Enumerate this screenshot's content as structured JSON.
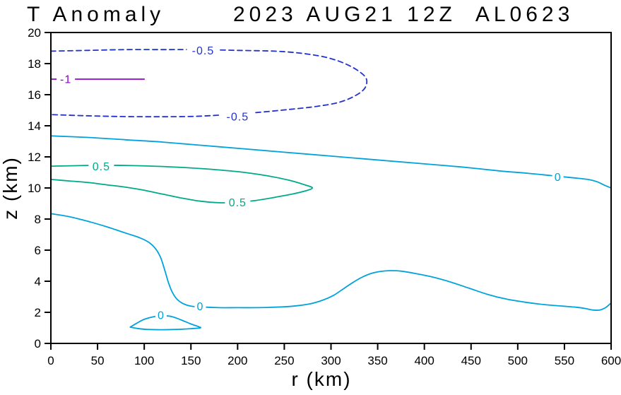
{
  "figure": {
    "title_left": "T Anomaly",
    "title_right": "2023 AUG21 12Z  AL0623"
  },
  "chart_data": {
    "type": "contour",
    "title": "T Anomaly",
    "valid_time": "2023 AUG21 12Z",
    "storm_id": "AL0623",
    "xlabel": "r (km)",
    "ylabel": "z (km)",
    "xlim": [
      0,
      600
    ],
    "ylim": [
      0,
      20
    ],
    "xticks": [
      0,
      50,
      100,
      150,
      200,
      250,
      300,
      350,
      400,
      450,
      500,
      550,
      600
    ],
    "yticks": [
      0,
      2,
      4,
      6,
      8,
      10,
      12,
      14,
      16,
      18,
      20
    ],
    "grid": false,
    "axis_color": "#000000",
    "contours": [
      {
        "name": "neg-0p5",
        "value": -0.5,
        "color": "#2233cc",
        "dashed": true,
        "points": [
          [
            0,
            18.8
          ],
          [
            40,
            18.85
          ],
          [
            80,
            18.9
          ],
          [
            120,
            18.9
          ],
          [
            160,
            18.9
          ],
          [
            200,
            18.85
          ],
          [
            240,
            18.8
          ],
          [
            270,
            18.65
          ],
          [
            295,
            18.4
          ],
          [
            315,
            18.0
          ],
          [
            330,
            17.5
          ],
          [
            338,
            17.0
          ],
          [
            336,
            16.4
          ],
          [
            325,
            15.9
          ],
          [
            308,
            15.5
          ],
          [
            285,
            15.25
          ],
          [
            255,
            15.05
          ],
          [
            220,
            14.85
          ],
          [
            185,
            14.7
          ],
          [
            150,
            14.6
          ],
          [
            110,
            14.58
          ],
          [
            70,
            14.6
          ],
          [
            35,
            14.65
          ],
          [
            0,
            14.72
          ]
        ],
        "labels": [
          {
            "r": 163,
            "z": 18.85,
            "text": "-0.5"
          },
          {
            "r": 200,
            "z": 14.6,
            "text": "-0.5"
          }
        ]
      },
      {
        "name": "neg-1",
        "value": -1,
        "color": "#9400D3",
        "dashed": false,
        "points": [
          [
            0,
            17.0
          ],
          [
            100,
            17.0
          ]
        ],
        "labels": [
          {
            "r": 16,
            "z": 17.0,
            "text": "-1"
          }
        ]
      },
      {
        "name": "zero-upper",
        "value": 0,
        "color": "#00A3DC",
        "dashed": false,
        "points": [
          [
            0,
            13.35
          ],
          [
            40,
            13.25
          ],
          [
            80,
            13.1
          ],
          [
            120,
            12.95
          ],
          [
            160,
            12.75
          ],
          [
            200,
            12.55
          ],
          [
            240,
            12.35
          ],
          [
            280,
            12.15
          ],
          [
            320,
            11.95
          ],
          [
            360,
            11.75
          ],
          [
            400,
            11.55
          ],
          [
            440,
            11.35
          ],
          [
            480,
            11.1
          ],
          [
            510,
            10.95
          ],
          [
            535,
            10.8
          ],
          [
            560,
            10.65
          ],
          [
            575,
            10.55
          ],
          [
            585,
            10.4
          ],
          [
            592,
            10.2
          ],
          [
            600,
            10.0
          ]
        ],
        "labels": [
          {
            "r": 543,
            "z": 10.7,
            "text": "0"
          }
        ]
      },
      {
        "name": "pos-0p5",
        "value": 0.5,
        "color": "#00AA88",
        "dashed": false,
        "points": [
          [
            0,
            11.4
          ],
          [
            40,
            11.45
          ],
          [
            80,
            11.45
          ],
          [
            120,
            11.38
          ],
          [
            160,
            11.25
          ],
          [
            200,
            11.05
          ],
          [
            230,
            10.8
          ],
          [
            255,
            10.5
          ],
          [
            272,
            10.2
          ],
          [
            280,
            10.0
          ],
          [
            272,
            9.8
          ],
          [
            258,
            9.6
          ],
          [
            240,
            9.4
          ],
          [
            220,
            9.2
          ],
          [
            200,
            9.08
          ],
          [
            180,
            9.05
          ],
          [
            160,
            9.15
          ],
          [
            140,
            9.35
          ],
          [
            120,
            9.6
          ],
          [
            100,
            9.85
          ],
          [
            80,
            10.05
          ],
          [
            60,
            10.2
          ],
          [
            40,
            10.35
          ],
          [
            20,
            10.45
          ],
          [
            0,
            10.55
          ]
        ],
        "labels": [
          {
            "r": 54,
            "z": 11.38,
            "text": "0.5"
          },
          {
            "r": 200,
            "z": 9.07,
            "text": "0.5"
          }
        ]
      },
      {
        "name": "zero-lower",
        "value": 0,
        "color": "#00A3DC",
        "dashed": false,
        "points": [
          [
            0,
            8.35
          ],
          [
            20,
            8.15
          ],
          [
            40,
            7.85
          ],
          [
            60,
            7.5
          ],
          [
            80,
            7.1
          ],
          [
            95,
            6.8
          ],
          [
            105,
            6.5
          ],
          [
            112,
            6.1
          ],
          [
            117,
            5.6
          ],
          [
            120,
            5.1
          ],
          [
            123,
            4.5
          ],
          [
            126,
            3.9
          ],
          [
            130,
            3.3
          ],
          [
            135,
            2.85
          ],
          [
            142,
            2.55
          ],
          [
            150,
            2.4
          ],
          [
            160,
            2.35
          ],
          [
            180,
            2.3
          ],
          [
            200,
            2.3
          ],
          [
            220,
            2.3
          ],
          [
            240,
            2.33
          ],
          [
            260,
            2.4
          ],
          [
            278,
            2.55
          ],
          [
            292,
            2.8
          ],
          [
            303,
            3.1
          ],
          [
            313,
            3.5
          ],
          [
            323,
            3.9
          ],
          [
            333,
            4.25
          ],
          [
            343,
            4.5
          ],
          [
            353,
            4.63
          ],
          [
            363,
            4.68
          ],
          [
            375,
            4.65
          ],
          [
            390,
            4.5
          ],
          [
            408,
            4.28
          ],
          [
            428,
            3.95
          ],
          [
            448,
            3.55
          ],
          [
            468,
            3.15
          ],
          [
            488,
            2.85
          ],
          [
            508,
            2.65
          ],
          [
            528,
            2.5
          ],
          [
            548,
            2.4
          ],
          [
            562,
            2.33
          ],
          [
            572,
            2.25
          ],
          [
            580,
            2.15
          ],
          [
            588,
            2.15
          ],
          [
            594,
            2.3
          ],
          [
            600,
            2.6
          ]
        ],
        "labels": [
          {
            "r": 160,
            "z": 2.38,
            "text": "0"
          }
        ]
      },
      {
        "name": "zero-inner",
        "value": 0,
        "color": "#00A3DC",
        "dashed": false,
        "points": [
          [
            85,
            1.05
          ],
          [
            92,
            1.3
          ],
          [
            100,
            1.55
          ],
          [
            110,
            1.72
          ],
          [
            120,
            1.78
          ],
          [
            130,
            1.72
          ],
          [
            140,
            1.5
          ],
          [
            150,
            1.25
          ],
          [
            158,
            1.08
          ],
          [
            160,
            1.0
          ],
          [
            150,
            0.95
          ],
          [
            135,
            0.9
          ],
          [
            118,
            0.88
          ],
          [
            103,
            0.9
          ],
          [
            92,
            0.97
          ],
          [
            85,
            1.05
          ]
        ],
        "labels": [
          {
            "r": 118,
            "z": 1.82,
            "text": "0"
          }
        ]
      }
    ]
  }
}
